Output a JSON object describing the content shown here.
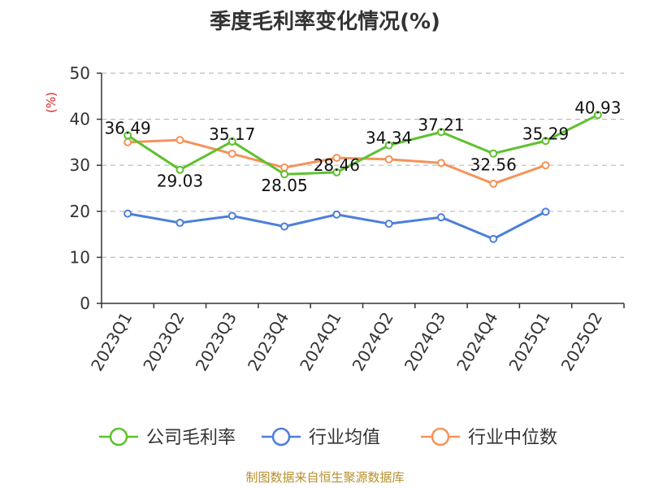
{
  "colors": {
    "company": "#5ec12f",
    "industry_avg": "#4c7fd9",
    "industry_median": "#f5935a",
    "ylabel": "#e02020",
    "source": "#b8902c",
    "grid": "#bbbbbb",
    "axis": "#333333"
  },
  "source_text": "制图数据来自恒生聚源数据库",
  "chart_data": {
    "type": "line",
    "title": "季度毛利率变化情况(%)",
    "xlabel": "",
    "ylabel": "(%)",
    "ylim": [
      0,
      50
    ],
    "yticks": [
      "0",
      "10",
      "20",
      "30",
      "40",
      "50"
    ],
    "grid": "horizontal-dashed",
    "legend_position": "bottom",
    "categories": [
      "2023Q1",
      "2023Q2",
      "2023Q3",
      "2023Q4",
      "2024Q1",
      "2024Q2",
      "2024Q3",
      "2024Q4",
      "2025Q1",
      "2025Q2"
    ],
    "series": [
      {
        "name": "公司毛利率",
        "values": [
          36.49,
          29.03,
          35.17,
          28.05,
          28.46,
          34.34,
          37.21,
          32.56,
          35.29,
          40.93
        ],
        "labels": [
          "36.49",
          "29.03",
          "35.17",
          "28.05",
          "28.46",
          "34.34",
          "37.21",
          "32.56",
          "35.29",
          "40.93"
        ]
      },
      {
        "name": "行业均值",
        "values": [
          19.5,
          17.5,
          19.0,
          16.7,
          19.3,
          17.3,
          18.7,
          14.0,
          19.9,
          null
        ]
      },
      {
        "name": "行业中位数",
        "values": [
          35.0,
          35.5,
          32.5,
          29.5,
          31.6,
          31.3,
          30.5,
          26.0,
          30.0,
          null
        ]
      }
    ]
  }
}
